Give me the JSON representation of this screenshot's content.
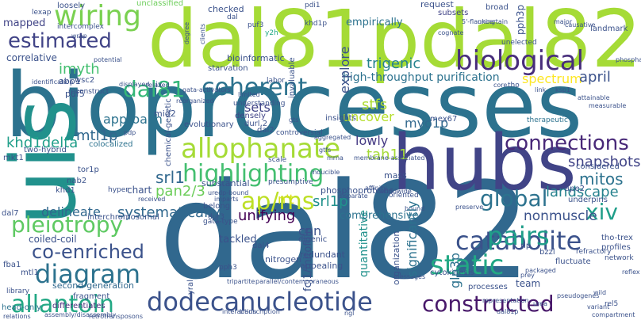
{
  "words": [
    {
      "text": "bioprocesses",
      "color": "#2c728e"
    },
    {
      "text": "dal82",
      "color": "#31688e"
    },
    {
      "text": "dal81pdal82p",
      "color": "#a5db36"
    },
    {
      "text": "uis",
      "color": "#21918c"
    },
    {
      "text": "hubs",
      "color": "#414487"
    },
    {
      "text": "dodecanucleotide",
      "color": "#3b528b"
    },
    {
      "text": "estimated",
      "color": "#414487"
    },
    {
      "text": "wiring",
      "color": "#7ad151"
    },
    {
      "text": "dal81",
      "color": "#35b779"
    },
    {
      "text": "coherent",
      "color": "#2c728e"
    },
    {
      "text": "biological",
      "color": "#472d7b"
    },
    {
      "text": "highlighting",
      "color": "#44bf70"
    },
    {
      "text": "allophanate",
      "color": "#a5db36"
    },
    {
      "text": "pleiotropy",
      "color": "#5ec962"
    },
    {
      "text": "co-enriched",
      "color": "#3b528b"
    },
    {
      "text": "diagram",
      "color": "#2c728e"
    },
    {
      "text": "allantoin",
      "color": "#22a884"
    },
    {
      "text": "catabolite",
      "color": "#3b528b"
    },
    {
      "text": "static",
      "color": "#22a884"
    },
    {
      "text": "constructed",
      "color": "#48186a"
    },
    {
      "text": "pairs",
      "color": "#1f9e89"
    },
    {
      "text": "connections",
      "color": "#482878"
    },
    {
      "text": "global",
      "color": "#2c728e"
    },
    {
      "text": "ap/ms",
      "color": "#bddf26"
    },
    {
      "text": "xiv",
      "color": "#1f9e89"
    },
    {
      "text": "trigenic",
      "color": "#26828e"
    },
    {
      "text": "high-throughput purification",
      "color": "#2c728e"
    },
    {
      "text": "spectrum",
      "color": "#fde725"
    },
    {
      "text": "april",
      "color": "#3b528b"
    },
    {
      "text": "snapshots",
      "color": "#414487"
    },
    {
      "text": "mitos",
      "color": "#2c728e"
    },
    {
      "text": "landscape",
      "color": "#26828e"
    },
    {
      "text": "nonmuscle",
      "color": "#3b528b"
    },
    {
      "text": "khd1delta",
      "color": "#1f9e89"
    },
    {
      "text": "mtl1p",
      "color": "#31688e"
    },
    {
      "text": "imyth",
      "color": "#44bf70"
    },
    {
      "text": "approach",
      "color": "#2c728e"
    },
    {
      "text": "stfs",
      "color": "#addc30"
    },
    {
      "text": "tah11",
      "color": "#a5db36"
    },
    {
      "text": "lowly",
      "color": "#443983"
    },
    {
      "text": "myo1p",
      "color": "#31688e"
    },
    {
      "text": "uncover",
      "color": "#b5de2b"
    },
    {
      "text": "sets",
      "color": "#414487"
    },
    {
      "text": "srl1",
      "color": "#31688e"
    },
    {
      "text": "srl1p",
      "color": "#21918c"
    },
    {
      "text": "pan2/3",
      "color": "#6ccd5a"
    },
    {
      "text": "systematically",
      "color": "#31688e"
    },
    {
      "text": "delineate",
      "color": "#31688e"
    },
    {
      "text": "n't",
      "color": "#d8e219"
    },
    {
      "text": "cnn",
      "color": "#3b528b"
    },
    {
      "text": "unifying",
      "color": "#440154"
    },
    {
      "text": "tackled",
      "color": "#3b528b"
    },
    {
      "text": "comprehensive",
      "color": "#2c728e"
    },
    {
      "text": "significantly",
      "color": "#2c728e"
    },
    {
      "text": "quantitative",
      "color": "#21918c"
    },
    {
      "text": "gln3p",
      "color": "#2c728e"
    },
    {
      "text": "coiled-coil",
      "color": "#3b528b"
    },
    {
      "text": "second-generation",
      "color": "#31688e"
    },
    {
      "text": "fragment",
      "color": "#3b528b"
    },
    {
      "text": "differentiates",
      "color": "#472d7b"
    },
    {
      "text": "head-only",
      "color": "#2c728e"
    },
    {
      "text": "correlative",
      "color": "#3b528b"
    },
    {
      "text": "mapped",
      "color": "#414487"
    },
    {
      "text": "intercomplex",
      "color": "#3b528b"
    },
    {
      "text": "loosely",
      "color": "#3b528b"
    },
    {
      "text": "lexap",
      "color": "#3b528b"
    },
    {
      "text": "unclassified",
      "color": "#6ccd5a"
    },
    {
      "text": "checked",
      "color": "#3b528b"
    },
    {
      "text": "dal",
      "color": "#3b528b"
    },
    {
      "text": "puf3",
      "color": "#3b528b"
    },
    {
      "text": "empirically",
      "color": "#2c728e"
    },
    {
      "text": "explore",
      "color": "#3b528b"
    },
    {
      "text": "request",
      "color": "#3b528b"
    },
    {
      "text": "subsets",
      "color": "#414487"
    },
    {
      "text": "landmark",
      "color": "#3b528b"
    },
    {
      "text": "broad",
      "color": "#3b528b"
    },
    {
      "text": "pph3p",
      "color": "#3b528b"
    },
    {
      "text": "khd1p",
      "color": "#3b528b"
    },
    {
      "text": "y2h",
      "color": "#22a884"
    },
    {
      "text": "pdi1",
      "color": "#3b528b"
    },
    {
      "text": "bioinformatic",
      "color": "#3b528b"
    },
    {
      "text": "abp1",
      "color": "#3b528b"
    },
    {
      "text": "puf5",
      "color": "#3b528b"
    },
    {
      "text": "wsc2",
      "color": "#3b528b"
    },
    {
      "text": "mid2",
      "color": "#3b528b"
    },
    {
      "text": "evolutionary",
      "color": "#3b528b"
    },
    {
      "text": "densely",
      "color": "#414487"
    },
    {
      "text": "insights",
      "color": "#3b528b"
    },
    {
      "text": "mex67",
      "color": "#3b528b"
    },
    {
      "text": "therapeutic",
      "color": "#2c728e"
    },
    {
      "text": "dal2",
      "color": "#3b528b"
    },
    {
      "text": "durl,2",
      "color": "#3b528b"
    },
    {
      "text": "controversial",
      "color": "#3b528b"
    },
    {
      "text": "two-hybrid",
      "color": "#3b528b"
    },
    {
      "text": "colocalized",
      "color": "#2c728e"
    },
    {
      "text": "tor1p",
      "color": "#3b528b"
    },
    {
      "text": "nab2",
      "color": "#3b528b"
    },
    {
      "text": "khd1",
      "color": "#3b528b"
    },
    {
      "text": "chart",
      "color": "#3b528b"
    },
    {
      "text": "substantial",
      "color": "#3b528b"
    },
    {
      "text": "presumptive",
      "color": "#3b528b"
    },
    {
      "text": "phosphoproteins",
      "color": "#3b528b"
    },
    {
      "text": "oriented",
      "color": "#3b528b"
    },
    {
      "text": "ape2",
      "color": "#3b528b"
    },
    {
      "text": "considered",
      "color": "#3b528b"
    },
    {
      "text": "underpins",
      "color": "#3b528b"
    },
    {
      "text": "dal7",
      "color": "#3b528b"
    },
    {
      "text": "interchromosomal",
      "color": "#3b528b"
    },
    {
      "text": "dur3",
      "color": "#3b528b"
    },
    {
      "text": "digenic",
      "color": "#3b528b"
    },
    {
      "text": "dal4",
      "color": "#3b528b"
    },
    {
      "text": "nitrogen",
      "color": "#3b528b"
    },
    {
      "text": "redundant",
      "color": "#3b528b"
    },
    {
      "text": "appealing",
      "color": "#3b528b"
    },
    {
      "text": "organization",
      "color": "#3b528b"
    },
    {
      "text": "cytokinesis",
      "color": "#3b528b"
    },
    {
      "text": "processes",
      "color": "#3b528b"
    },
    {
      "text": "team",
      "color": "#3b528b"
    },
    {
      "text": "rip",
      "color": "#3b528b"
    },
    {
      "text": "bzzl",
      "color": "#3b528b"
    },
    {
      "text": "fluctuate",
      "color": "#3b528b"
    },
    {
      "text": "tho-trex",
      "color": "#3b528b"
    },
    {
      "text": "profiles",
      "color": "#3b528b"
    },
    {
      "text": "network",
      "color": "#3b528b"
    },
    {
      "text": "belong",
      "color": "#3b528b"
    },
    {
      "text": "fba1",
      "color": "#3b528b"
    },
    {
      "text": "yral",
      "color": "#3b528b"
    },
    {
      "text": "pph3",
      "color": "#3b528b"
    },
    {
      "text": "mtl1",
      "color": "#3b528b"
    },
    {
      "text": "fcj1/mitofilin",
      "color": "#3b528b"
    },
    {
      "text": "refractory",
      "color": "#3b528b"
    },
    {
      "text": "starvation",
      "color": "#3b528b"
    },
    {
      "text": "invaluable",
      "color": "#3b528b"
    },
    {
      "text": "ix",
      "color": "#3b528b"
    },
    {
      "text": "tho",
      "color": "#3b528b"
    },
    {
      "text": "library",
      "color": "#3b528b"
    },
    {
      "text": "labor",
      "color": "#3b528b"
    },
    {
      "text": "mass",
      "color": "#3b528b"
    },
    {
      "text": "scale",
      "color": "#3b528b"
    },
    {
      "text": "chemical-genetic",
      "color": "#3b528b"
    },
    {
      "text": "reconstruct",
      "color": "#3b528b"
    },
    {
      "text": "understanding",
      "color": "#3b528b"
    },
    {
      "text": "tripartite",
      "color": "#3b528b"
    },
    {
      "text": "parallel/contemporaneous",
      "color": "#3b528b"
    },
    {
      "text": "assembly/disassembly",
      "color": "#3b528b"
    },
    {
      "text": "relations",
      "color": "#3b528b"
    },
    {
      "text": "retrotransposons",
      "color": "#3b528b"
    },
    {
      "text": "compartment",
      "color": "#3b528b"
    },
    {
      "text": "rel5",
      "color": "#3b528b"
    },
    {
      "text": "variant",
      "color": "#3b528b"
    },
    {
      "text": "pseudogenes",
      "color": "#3b528b"
    },
    {
      "text": "urea",
      "color": "#3b528b"
    },
    {
      "text": "packaged",
      "color": "#3b528b"
    },
    {
      "text": "prey",
      "color": "#3b528b"
    },
    {
      "text": "messages",
      "color": "#3b528b"
    },
    {
      "text": "preserve",
      "color": "#3b528b"
    },
    {
      "text": "imparts",
      "color": "#3b528b"
    },
    {
      "text": "uredp-bound",
      "color": "#3b528b"
    },
    {
      "text": "gata-type",
      "color": "#3b528b"
    },
    {
      "text": "worldwide",
      "color": "#3b528b"
    },
    {
      "text": "bound",
      "color": "#3b528b"
    },
    {
      "text": "relaxed",
      "color": "#3b528b"
    },
    {
      "text": "displayed",
      "color": "#3b528b"
    },
    {
      "text": "identification",
      "color": "#3b528b"
    },
    {
      "text": "potential",
      "color": "#3b528b"
    },
    {
      "text": "degree",
      "color": "#3b528b"
    },
    {
      "text": "clients",
      "color": "#3b528b"
    },
    {
      "text": "unelected",
      "color": "#3b528b"
    },
    {
      "text": "core",
      "color": "#3b528b"
    },
    {
      "text": "link",
      "color": "#3b528b"
    },
    {
      "text": "major",
      "color": "#3b528b"
    },
    {
      "text": "causative",
      "color": "#3b528b"
    },
    {
      "text": "phosphatases",
      "color": "#3b528b"
    },
    {
      "text": "5'-flanking",
      "color": "#3b528b"
    },
    {
      "text": "wrap",
      "color": "#3b528b"
    },
    {
      "text": "cognate",
      "color": "#3b528b"
    },
    {
      "text": "reflex",
      "color": "#3b528b"
    },
    {
      "text": "wild",
      "color": "#3b528b"
    },
    {
      "text": "dal81p",
      "color": "#3b528b"
    },
    {
      "text": "uncertain",
      "color": "#3b528b"
    },
    {
      "text": "representation",
      "color": "#3b528b"
    },
    {
      "text": "hyper",
      "color": "#3b528b"
    },
    {
      "text": "received",
      "color": "#3b528b"
    },
    {
      "text": "mkt1",
      "color": "#3b528b"
    },
    {
      "text": "pdp",
      "color": "#3b528b"
    },
    {
      "text": "aggregated",
      "color": "#3b528b"
    },
    {
      "text": "interaction",
      "color": "#3b528b"
    },
    {
      "text": "reorganized",
      "color": "#3b528b"
    },
    {
      "text": "limited",
      "color": "#3b528b"
    },
    {
      "text": "gtfs",
      "color": "#3b528b"
    },
    {
      "text": "mrna",
      "color": "#3b528b"
    },
    {
      "text": "ngl",
      "color": "#3b528b"
    },
    {
      "text": "transcription",
      "color": "#3b528b"
    },
    {
      "text": "membrane-associated",
      "color": "#3b528b"
    },
    {
      "text": "gts",
      "color": "#3b528b"
    },
    {
      "text": "ksp1",
      "color": "#3b528b"
    },
    {
      "text": "attainable",
      "color": "#3b528b"
    },
    {
      "text": "measurable",
      "color": "#3b528b"
    },
    {
      "text": "inducible",
      "color": "#3b528b"
    },
    {
      "text": "affinity",
      "color": "#3b528b"
    },
    {
      "text": "disparate",
      "color": "#3b528b"
    },
    {
      "text": "gata-activators",
      "color": "#3b528b"
    },
    {
      "text": "agl1",
      "color": "#3b528b"
    },
    {
      "text": "genetic",
      "color": "#3b528b"
    }
  ]
}
